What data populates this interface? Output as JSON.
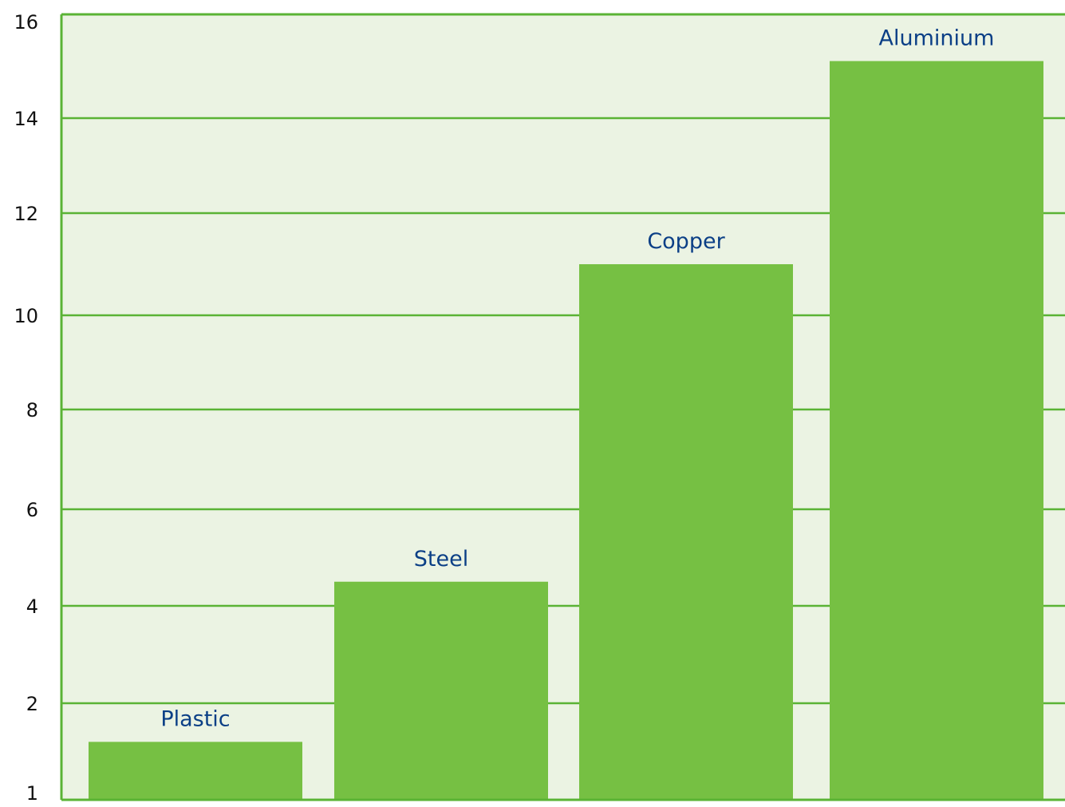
{
  "colors": {
    "plot_background": "#ebf3e3",
    "bar": "#76c043",
    "gridline": "#5ab335",
    "axis": "#5ab335",
    "bar_label": "#0b3f86",
    "tick_label": "#111111"
  },
  "chart_data": {
    "type": "bar",
    "title": "",
    "xlabel": "",
    "ylabel": "",
    "categories": [
      "Plastic",
      "Steel",
      "Copper",
      "Aluminium"
    ],
    "values": [
      1.6,
      4.5,
      11.0,
      15.1
    ],
    "y_ticks": [
      {
        "value": 1,
        "label": "1"
      },
      {
        "value": 2,
        "label": "2"
      },
      {
        "value": 4,
        "label": "4"
      },
      {
        "value": 6,
        "label": "6"
      },
      {
        "value": 8,
        "label": "8"
      },
      {
        "value": 10,
        "label": "10"
      },
      {
        "value": 12,
        "label": "12"
      },
      {
        "value": 14,
        "label": "14"
      },
      {
        "value": 16,
        "label": "16"
      }
    ],
    "ylim": [
      1,
      16
    ],
    "grid": true,
    "category_labels_above_bars": true
  }
}
